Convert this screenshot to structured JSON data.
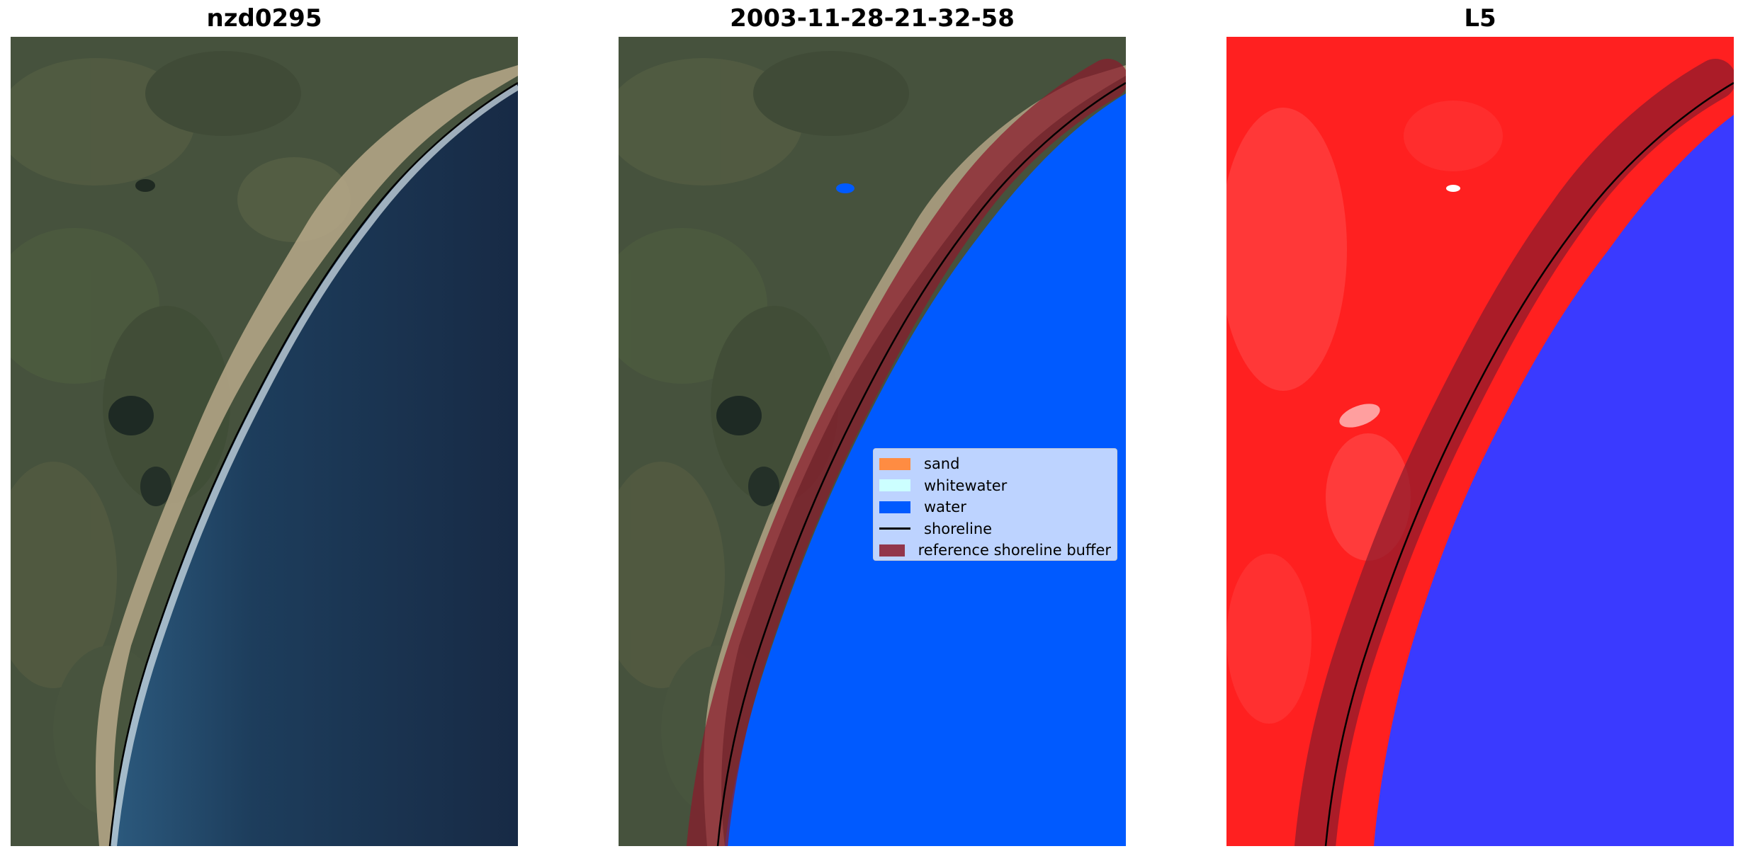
{
  "panels": [
    {
      "title": "nzd0295"
    },
    {
      "title": "2003-11-28-21-32-58"
    },
    {
      "title": "L5"
    }
  ],
  "colors": {
    "sand": "#ff8c42",
    "whitewater": "#ccffff",
    "water": "#005aff",
    "shoreline": "#000000",
    "buffer": "#8b1a2b",
    "land_class": "#ff2020",
    "water_class": "#3333ff"
  },
  "legend": {
    "items": [
      {
        "label": "sand",
        "kind": "patch",
        "color": "#ff8c42"
      },
      {
        "label": "whitewater",
        "kind": "patch",
        "color": "#ccffff"
      },
      {
        "label": "water",
        "kind": "patch",
        "color": "#005aff"
      },
      {
        "label": "shoreline",
        "kind": "line",
        "color": "#000000"
      },
      {
        "label": "reference shoreline buffer",
        "kind": "patch",
        "color": "#8b1a2b"
      }
    ]
  }
}
